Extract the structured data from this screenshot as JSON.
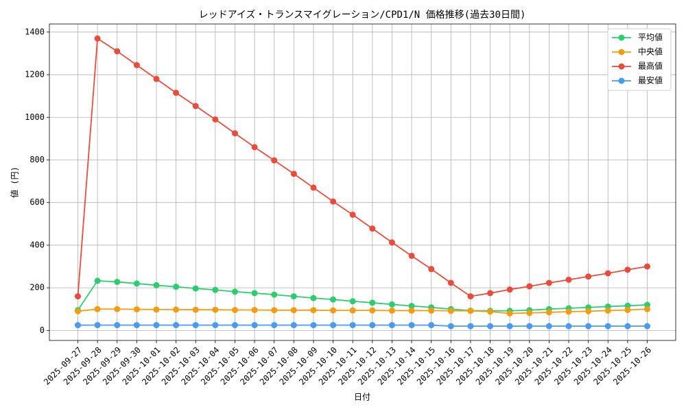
{
  "chart_data": {
    "type": "line",
    "title": "レッドアイズ・トランスマイグレーション/CPD1/N 価格推移(過去30日間)",
    "x_label": "日付",
    "y_label": "値 (円)",
    "categories": [
      "2025-09-27",
      "2025-09-28",
      "2025-09-29",
      "2025-09-30",
      "2025-10-01",
      "2025-10-02",
      "2025-10-03",
      "2025-10-04",
      "2025-10-05",
      "2025-10-06",
      "2025-10-07",
      "2025-10-08",
      "2025-10-09",
      "2025-10-10",
      "2025-10-11",
      "2025-10-12",
      "2025-10-13",
      "2025-10-14",
      "2025-10-15",
      "2025-10-16",
      "2025-10-17",
      "2025-10-18",
      "2025-10-19",
      "2025-10-20",
      "2025-10-21",
      "2025-10-22",
      "2025-10-23",
      "2025-10-24",
      "2025-10-25",
      "2025-10-26"
    ],
    "series": [
      {
        "name": "平均値",
        "color": "#2ecc71",
        "values": [
          95,
          233,
          228,
          220,
          212,
          205,
          197,
          190,
          182,
          175,
          168,
          160,
          152,
          145,
          137,
          130,
          122,
          115,
          108,
          100,
          93,
          92,
          92,
          95,
          100,
          104,
          108,
          112,
          116,
          120
        ]
      },
      {
        "name": "中央値",
        "color": "#f39c12",
        "values": [
          90,
          100,
          100,
          99,
          98,
          98,
          97,
          97,
          96,
          96,
          95,
          95,
          95,
          94,
          94,
          94,
          93,
          93,
          93,
          92,
          92,
          88,
          80,
          82,
          85,
          88,
          90,
          93,
          96,
          100
        ]
      },
      {
        "name": "最高値",
        "color": "#e74c3c",
        "values": [
          160,
          1370,
          1310,
          1245,
          1180,
          1115,
          1053,
          990,
          925,
          860,
          798,
          735,
          670,
          605,
          543,
          478,
          413,
          350,
          288,
          223,
          160,
          175,
          192,
          207,
          223,
          238,
          253,
          268,
          285,
          300
        ]
      },
      {
        "name": "最安値",
        "color": "#4a9af0",
        "values": [
          25,
          25,
          25,
          25,
          25,
          25,
          25,
          25,
          25,
          25,
          25,
          25,
          25,
          25,
          25,
          25,
          25,
          25,
          25,
          20,
          20,
          20,
          20,
          20,
          20,
          20,
          20,
          20,
          20,
          20
        ]
      }
    ],
    "ylim": [
      -47,
      1438
    ],
    "yticks": [
      0,
      200,
      400,
      600,
      800,
      1000,
      1200,
      1400
    ],
    "grid": true,
    "legend": "upper-right"
  }
}
